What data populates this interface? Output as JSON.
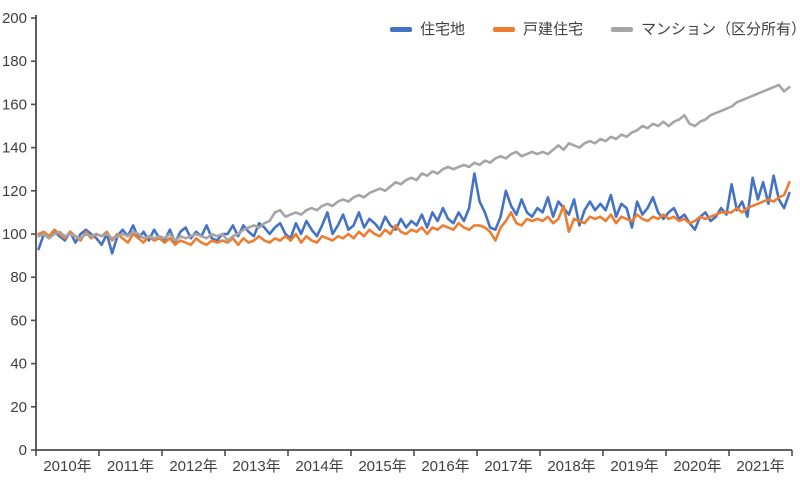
{
  "chart_data": {
    "type": "line",
    "title": "",
    "xlabel": "",
    "ylabel": "",
    "x_unit": "month",
    "x_start": "2010-01",
    "x_end": "2021-12",
    "categories": [
      "2010年",
      "2011年",
      "2012年",
      "2013年",
      "2014年",
      "2015年",
      "2016年",
      "2017年",
      "2018年",
      "2019年",
      "2020年",
      "2021年"
    ],
    "y_ticks": [
      0,
      20,
      40,
      60,
      80,
      100,
      120,
      140,
      160,
      180,
      200
    ],
    "ylim": [
      0,
      200
    ],
    "grid": false,
    "legend_position": "top",
    "axis_color": "#4d4d4d",
    "tick_label_color": "#404040",
    "series": [
      {
        "name": "住宅地",
        "key": "residential-land",
        "color": "#4472C4",
        "values": [
          93,
          100,
          98,
          101,
          99,
          97,
          101,
          96,
          100,
          102,
          100,
          98,
          95,
          100,
          91,
          99,
          102,
          99,
          104,
          98,
          101,
          97,
          102,
          98,
          97,
          102,
          96,
          101,
          103,
          98,
          101,
          99,
          104,
          98,
          97,
          100,
          100,
          104,
          99,
          104,
          101,
          99,
          105,
          103,
          100,
          103,
          105,
          100,
          98,
          105,
          100,
          106,
          102,
          99,
          104,
          110,
          100,
          104,
          109,
          102,
          104,
          110,
          103,
          107,
          105,
          102,
          108,
          104,
          102,
          107,
          103,
          106,
          104,
          109,
          103,
          110,
          106,
          112,
          107,
          105,
          110,
          106,
          112,
          128,
          115,
          110,
          103,
          102,
          108,
          120,
          113,
          109,
          116,
          110,
          108,
          112,
          110,
          117,
          108,
          115,
          112,
          109,
          116,
          104,
          111,
          115,
          111,
          114,
          111,
          118,
          108,
          114,
          112,
          103,
          115,
          109,
          112,
          117,
          110,
          107,
          110,
          112,
          107,
          109,
          105,
          102,
          108,
          110,
          106,
          108,
          112,
          109,
          123,
          111,
          115,
          108,
          126,
          116,
          124,
          114,
          127,
          116,
          112,
          119
        ]
      },
      {
        "name": "戸建住宅",
        "key": "detached-house",
        "color": "#ED7D31",
        "values": [
          100,
          101,
          99,
          102,
          100,
          98,
          101,
          99,
          97,
          101,
          98,
          100,
          99,
          101,
          97,
          100,
          98,
          96,
          100,
          98,
          96,
          99,
          97,
          98,
          96,
          98,
          95,
          97,
          96,
          95,
          98,
          96,
          95,
          97,
          96,
          97,
          96,
          98,
          95,
          98,
          96,
          97,
          99,
          97,
          96,
          98,
          97,
          99,
          97,
          100,
          96,
          99,
          97,
          96,
          99,
          98,
          97,
          99,
          98,
          100,
          98,
          101,
          99,
          102,
          100,
          99,
          102,
          100,
          104,
          101,
          100,
          102,
          101,
          103,
          100,
          103,
          102,
          104,
          103,
          102,
          105,
          103,
          102,
          104,
          104,
          103,
          101,
          97,
          103,
          106,
          110,
          105,
          104,
          107,
          106,
          107,
          106,
          108,
          105,
          107,
          113,
          101,
          107,
          106,
          105,
          108,
          107,
          108,
          106,
          109,
          105,
          108,
          107,
          106,
          109,
          107,
          106,
          108,
          107,
          109,
          107,
          108,
          106,
          107,
          105,
          106,
          108,
          107,
          108,
          109,
          110,
          110,
          110,
          112,
          110,
          112,
          113,
          114,
          115,
          116,
          115,
          117,
          118,
          124
        ]
      },
      {
        "name": "マンション（区分所有）",
        "key": "condominium",
        "color": "#A5A5A5",
        "values": [
          99,
          100,
          98,
          100,
          101,
          99,
          100,
          99,
          98,
          100,
          99,
          100,
          99,
          100,
          98,
          99,
          100,
          99,
          101,
          100,
          98,
          99,
          98,
          99,
          98,
          100,
          97,
          99,
          98,
          99,
          100,
          99,
          98,
          100,
          99,
          100,
          97,
          99,
          100,
          102,
          103,
          104,
          103,
          105,
          106,
          110,
          111,
          108,
          109,
          110,
          109,
          111,
          112,
          111,
          113,
          114,
          113,
          115,
          116,
          115,
          117,
          118,
          117,
          119,
          120,
          121,
          120,
          122,
          124,
          123,
          125,
          126,
          125,
          128,
          127,
          129,
          128,
          130,
          131,
          130,
          131,
          132,
          131,
          133,
          132,
          134,
          133,
          135,
          136,
          135,
          137,
          138,
          136,
          137,
          138,
          137,
          138,
          137,
          139,
          141,
          139,
          142,
          141,
          140,
          142,
          143,
          142,
          144,
          143,
          145,
          144,
          146,
          145,
          147,
          148,
          150,
          149,
          151,
          150,
          152,
          150,
          152,
          153,
          155,
          151,
          150,
          152,
          153,
          155,
          156,
          157,
          158,
          159,
          161,
          162,
          163,
          164,
          165,
          166,
          167,
          168,
          169,
          166,
          168
        ]
      }
    ]
  }
}
